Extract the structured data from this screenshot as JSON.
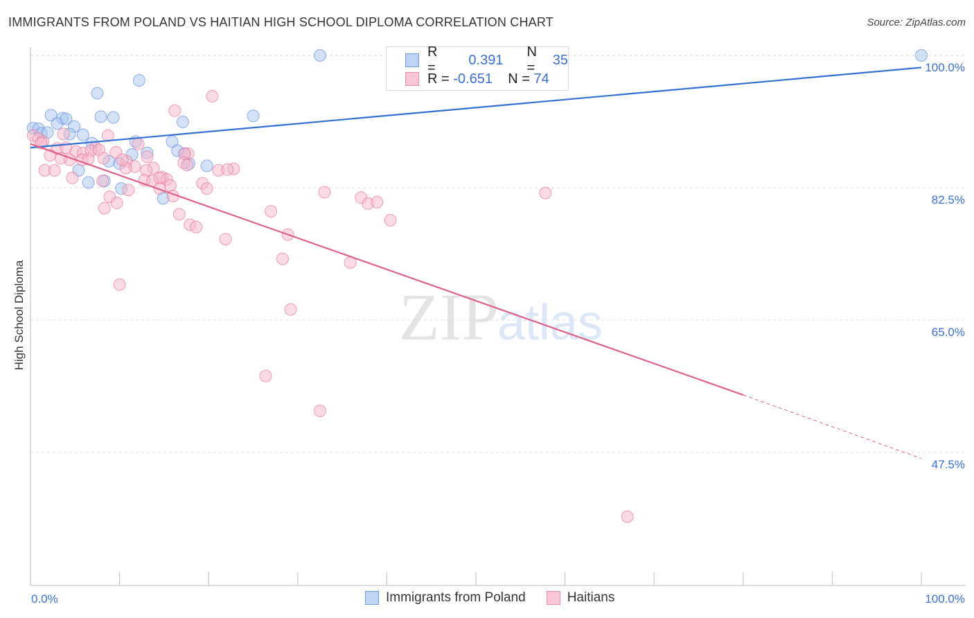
{
  "title": "IMMIGRANTS FROM POLAND VS HAITIAN HIGH SCHOOL DIPLOMA CORRELATION CHART",
  "source": "Source: ZipAtlas.com",
  "watermark": "ZIPatlas",
  "legend": {
    "rows": [
      {
        "r_label": "R =",
        "r_value": "0.391",
        "n_label": "N =",
        "n_value": "35"
      },
      {
        "r_label": "R =",
        "r_value": "-0.651",
        "n_label": "N =",
        "n_value": "74"
      }
    ]
  },
  "chart_data": {
    "type": "scatter",
    "title": "IMMIGRANTS FROM POLAND VS HAITIAN HIGH SCHOOL DIPLOMA CORRELATION CHART",
    "xlabel": "",
    "ylabel": "High School Diploma",
    "xlim": [
      0,
      100
    ],
    "ylim": [
      30,
      100
    ],
    "x_tick_labels": [
      "0.0%",
      "100.0%"
    ],
    "y_ticks": [
      100,
      82.5,
      65,
      47.5
    ],
    "y_tick_labels": [
      "100.0%",
      "82.5%",
      "65.0%",
      "47.5%"
    ],
    "grid": true,
    "legend_position": "bottom",
    "series": [
      {
        "name": "Immigrants from Poland",
        "color": "#4a7fe0",
        "fill": "#a9c6f0",
        "trend": {
          "x0": 0,
          "y0": 87.8,
          "x1": 100,
          "y1": 98.4
        },
        "points": [
          [
            32.5,
            100
          ],
          [
            100,
            100
          ],
          [
            12.2,
            96.7
          ],
          [
            7.5,
            95.0
          ],
          [
            2.3,
            92.1
          ],
          [
            7.9,
            91.9
          ],
          [
            9.3,
            91.8
          ],
          [
            25.0,
            92.0
          ],
          [
            3.6,
            91.7
          ],
          [
            3.0,
            91.0
          ],
          [
            4.0,
            91.6
          ],
          [
            17.1,
            91.2
          ],
          [
            4.9,
            90.6
          ],
          [
            0.3,
            90.4
          ],
          [
            0.9,
            90.3
          ],
          [
            1.2,
            89.7
          ],
          [
            1.9,
            89.8
          ],
          [
            5.9,
            89.5
          ],
          [
            4.4,
            89.6
          ],
          [
            11.8,
            88.6
          ],
          [
            15.9,
            88.6
          ],
          [
            6.9,
            88.4
          ],
          [
            16.5,
            87.4
          ],
          [
            13.1,
            87.1
          ],
          [
            11.4,
            86.9
          ],
          [
            17.3,
            87.0
          ],
          [
            17.8,
            85.7
          ],
          [
            8.8,
            86.0
          ],
          [
            10.0,
            85.7
          ],
          [
            19.8,
            85.4
          ],
          [
            5.4,
            84.8
          ],
          [
            6.5,
            83.2
          ],
          [
            8.3,
            83.4
          ],
          [
            10.2,
            82.4
          ],
          [
            14.9,
            81.1
          ]
        ]
      },
      {
        "name": "Haitians",
        "color": "#e8648f",
        "fill": "#f6b8cb",
        "trend": {
          "x0": 0,
          "y0": 88.3,
          "x1": 80,
          "y1": 55.1,
          "dash_x1": 100,
          "dash_y1": 46.7
        },
        "points": [
          [
            20.4,
            94.6
          ],
          [
            16.2,
            92.7
          ],
          [
            8.7,
            89.4
          ],
          [
            3.7,
            89.6
          ],
          [
            0.3,
            89.4
          ],
          [
            0.9,
            89.0
          ],
          [
            1.4,
            88.6
          ],
          [
            12.1,
            88.3
          ],
          [
            3.0,
            87.7
          ],
          [
            4.0,
            87.8
          ],
          [
            7.3,
            87.8
          ],
          [
            9.6,
            87.2
          ],
          [
            5.1,
            87.3
          ],
          [
            5.9,
            87.1
          ],
          [
            6.8,
            87.4
          ],
          [
            7.7,
            87.5
          ],
          [
            17.7,
            87.0
          ],
          [
            17.3,
            87.0
          ],
          [
            2.2,
            86.8
          ],
          [
            4.4,
            86.2
          ],
          [
            5.8,
            86.2
          ],
          [
            6.5,
            86.3
          ],
          [
            10.8,
            86.0
          ],
          [
            11.7,
            85.3
          ],
          [
            13.8,
            85.1
          ],
          [
            10.7,
            85.1
          ],
          [
            17.2,
            85.8
          ],
          [
            17.6,
            85.5
          ],
          [
            22.8,
            85.0
          ],
          [
            21.1,
            84.8
          ],
          [
            22.1,
            84.9
          ],
          [
            1.6,
            84.8
          ],
          [
            2.7,
            84.8
          ],
          [
            13.0,
            84.8
          ],
          [
            4.7,
            83.8
          ],
          [
            8.1,
            83.4
          ],
          [
            12.8,
            83.5
          ],
          [
            13.7,
            83.4
          ],
          [
            14.8,
            83.9
          ],
          [
            15.3,
            83.6
          ],
          [
            15.7,
            82.8
          ],
          [
            19.3,
            83.1
          ],
          [
            19.8,
            82.4
          ],
          [
            14.5,
            82.4
          ],
          [
            11.0,
            82.2
          ],
          [
            33.0,
            81.9
          ],
          [
            8.9,
            81.3
          ],
          [
            57.8,
            81.8
          ],
          [
            37.1,
            81.2
          ],
          [
            37.9,
            80.4
          ],
          [
            38.9,
            80.6
          ],
          [
            9.7,
            80.5
          ],
          [
            8.3,
            79.8
          ],
          [
            16.0,
            81.4
          ],
          [
            27.0,
            79.4
          ],
          [
            16.7,
            79.0
          ],
          [
            40.4,
            78.2
          ],
          [
            17.9,
            77.6
          ],
          [
            18.6,
            77.3
          ],
          [
            28.9,
            76.3
          ],
          [
            21.9,
            75.7
          ],
          [
            28.3,
            73.1
          ],
          [
            35.9,
            72.6
          ],
          [
            10.0,
            69.7
          ],
          [
            29.2,
            66.4
          ],
          [
            26.4,
            57.6
          ],
          [
            32.5,
            53.0
          ],
          [
            67.0,
            39.0
          ],
          [
            1.2,
            88.4
          ],
          [
            3.4,
            86.4
          ],
          [
            13.1,
            86.6
          ],
          [
            10.3,
            86.2
          ],
          [
            8.2,
            86.4
          ],
          [
            14.5,
            83.8
          ]
        ]
      }
    ]
  }
}
